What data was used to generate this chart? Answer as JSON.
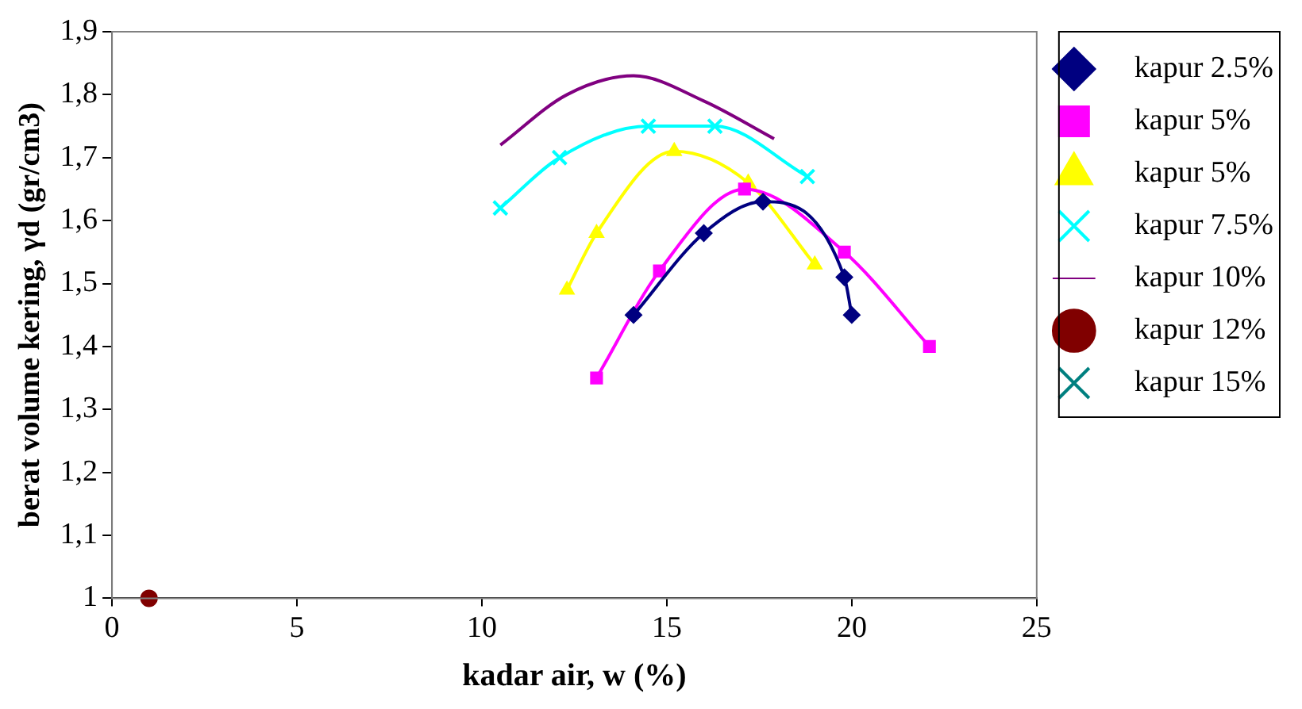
{
  "chart_data": {
    "type": "line",
    "xlabel": "kadar air, w (%)",
    "ylabel": "berat volume kering, γd (gr/cm3)",
    "xlim": [
      0,
      25
    ],
    "xticks": [
      0,
      5,
      10,
      15,
      20,
      25
    ],
    "ylim": [
      1,
      1.9
    ],
    "yticks": [
      {
        "value": 1,
        "label": "1"
      },
      {
        "value": 1.1,
        "label": "1,1"
      },
      {
        "value": 1.2,
        "label": "1,2"
      },
      {
        "value": 1.3,
        "label": "1,3"
      },
      {
        "value": 1.4,
        "label": "1,4"
      },
      {
        "value": 1.5,
        "label": "1,5"
      },
      {
        "value": 1.6,
        "label": "1,6"
      },
      {
        "value": 1.7,
        "label": "1,7"
      },
      {
        "value": 1.8,
        "label": "1,8"
      },
      {
        "value": 1.9,
        "label": "1,9"
      }
    ],
    "grid": false,
    "legend": "right",
    "series": [
      {
        "name": "kapur 2.5%",
        "color": "#000080",
        "marker": "diamond",
        "x": [
          14.1,
          16.0,
          17.6,
          19.8,
          20.0
        ],
        "values": [
          1.45,
          1.58,
          1.63,
          1.51,
          1.45
        ]
      },
      {
        "name": "kapur 5%",
        "color": "#ff00ff",
        "marker": "square",
        "x": [
          13.1,
          14.8,
          17.1,
          19.8,
          22.1
        ],
        "values": [
          1.35,
          1.52,
          1.65,
          1.55,
          1.4
        ]
      },
      {
        "name": "kapur 5%",
        "color": "#ffff00",
        "marker": "triangle",
        "x": [
          12.3,
          13.1,
          15.2,
          17.2,
          19.0
        ],
        "values": [
          1.49,
          1.58,
          1.71,
          1.66,
          1.53
        ]
      },
      {
        "name": "kapur 7.5%",
        "color": "#00ffff",
        "marker": "cross",
        "x": [
          10.5,
          12.1,
          14.5,
          16.3,
          18.8
        ],
        "values": [
          1.62,
          1.7,
          1.75,
          1.75,
          1.67
        ]
      },
      {
        "name": "kapur 10%",
        "color": "#800080",
        "marker": "none",
        "x": [
          10.5,
          12.3,
          14.1,
          16.0,
          17.9
        ],
        "values": [
          1.72,
          1.8,
          1.83,
          1.79,
          1.73
        ]
      },
      {
        "name": "kapur 12%",
        "color": "#800000",
        "marker": "circle",
        "x": [
          1
        ],
        "values": [
          1
        ]
      },
      {
        "name": "kapur 15%",
        "color": "#008080",
        "marker": "cross"
      }
    ]
  }
}
